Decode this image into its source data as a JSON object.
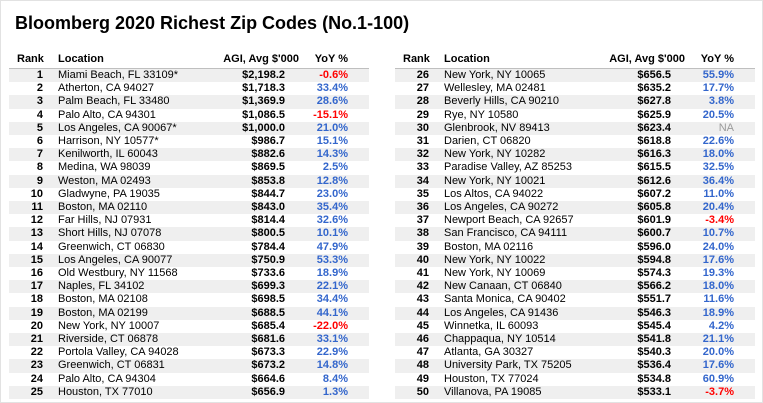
{
  "title": "Bloomberg 2020 Richest Zip Codes (No.1-100)",
  "colors": {
    "positive_yoy": "#3366CC",
    "negative_yoy": "#FF0000",
    "na_value": "#9B9B9B",
    "row_stripe": "#EFEFEF",
    "header_rule": "#BFBFBF"
  },
  "na_label": "NA",
  "chart_data": {
    "type": "table",
    "title": "Bloomberg 2020 Richest Zip Codes (No.1-100)",
    "columns": [
      "Rank",
      "Location",
      "AGI, Avg $'000",
      "YoY %"
    ],
    "layout": "two side-by-side tables: ranks 1-25 left, ranks 26-50 right",
    "rows": [
      [
        1,
        "Miami Beach, FL 33109*",
        2198.2,
        -0.6
      ],
      [
        2,
        "Atherton, CA 94027",
        1718.3,
        33.4
      ],
      [
        3,
        "Palm Beach, FL 33480",
        1369.9,
        28.6
      ],
      [
        4,
        "Palo Alto, CA 94301",
        1086.5,
        -15.1
      ],
      [
        5,
        "Los Angeles, CA 90067*",
        1000.0,
        21.0
      ],
      [
        6,
        "Harrison, NY 10577*",
        986.7,
        15.1
      ],
      [
        7,
        "Kenilworth, IL 60043",
        882.6,
        14.3
      ],
      [
        8,
        "Medina, WA 98039",
        869.5,
        2.5
      ],
      [
        9,
        "Weston, MA 02493",
        853.8,
        12.8
      ],
      [
        10,
        "Gladwyne, PA 19035",
        844.7,
        23.0
      ],
      [
        11,
        "Boston, MA 02110",
        843.0,
        35.4
      ],
      [
        12,
        "Far Hills, NJ 07931",
        814.4,
        32.6
      ],
      [
        13,
        "Short Hills, NJ 07078",
        800.5,
        10.1
      ],
      [
        14,
        "Greenwich, CT 06830",
        784.4,
        47.9
      ],
      [
        15,
        "Los Angeles, CA 90077",
        750.9,
        53.3
      ],
      [
        16,
        "Old Westbury, NY 11568",
        733.6,
        18.9
      ],
      [
        17,
        "Naples, FL 34102",
        699.3,
        22.1
      ],
      [
        18,
        "Boston, MA 02108",
        698.5,
        34.4
      ],
      [
        19,
        "Boston, MA 02199",
        688.5,
        44.1
      ],
      [
        20,
        "New York, NY 10007",
        685.4,
        -22.0
      ],
      [
        21,
        "Riverside, CT 06878",
        681.6,
        33.1
      ],
      [
        22,
        "Portola Valley, CA 94028",
        673.3,
        22.9
      ],
      [
        23,
        "Greenwich, CT 06831",
        673.2,
        14.8
      ],
      [
        24,
        "Palo Alto, CA 94304",
        664.6,
        8.4
      ],
      [
        25,
        "Houston, TX 77010",
        656.9,
        1.3
      ],
      [
        26,
        "New York, NY 10065",
        656.5,
        55.9
      ],
      [
        27,
        "Wellesley, MA 02481",
        635.2,
        17.7
      ],
      [
        28,
        "Beverly Hills, CA 90210",
        627.8,
        3.8
      ],
      [
        29,
        "Rye, NY 10580",
        625.9,
        20.5
      ],
      [
        30,
        "Glenbrook, NV 89413",
        623.4,
        null
      ],
      [
        31,
        "Darien, CT 06820",
        618.8,
        22.6
      ],
      [
        32,
        "New York, NY 10282",
        616.3,
        18.0
      ],
      [
        33,
        "Paradise Valley, AZ 85253",
        615.5,
        32.5
      ],
      [
        34,
        "New York, NY 10021",
        612.6,
        36.4
      ],
      [
        35,
        "Los Altos, CA 94022",
        607.2,
        11.0
      ],
      [
        36,
        "Los Angeles, CA 90272",
        605.8,
        20.4
      ],
      [
        37,
        "Newport Beach, CA 92657",
        601.9,
        -3.4
      ],
      [
        38,
        "San Francisco, CA 94111",
        600.7,
        10.7
      ],
      [
        39,
        "Boston, MA 02116",
        596.0,
        24.0
      ],
      [
        40,
        "New York, NY 10022",
        594.8,
        17.6
      ],
      [
        41,
        "New York, NY 10069",
        574.3,
        19.3
      ],
      [
        42,
        "New Canaan, CT 06840",
        566.2,
        18.0
      ],
      [
        43,
        "Santa Monica, CA 90402",
        551.7,
        11.6
      ],
      [
        44,
        "Los Angeles, CA 91436",
        546.3,
        18.9
      ],
      [
        45,
        "Winnetka, IL 60093",
        545.4,
        4.2
      ],
      [
        46,
        "Chappaqua, NY 10514",
        541.8,
        21.1
      ],
      [
        47,
        "Atlanta, GA 30327",
        540.3,
        20.0
      ],
      [
        48,
        "University Park, TX 75205",
        536.4,
        17.6
      ],
      [
        49,
        "Houston, TX 77024",
        534.8,
        60.9
      ],
      [
        50,
        "Villanova, PA 19085",
        533.1,
        -3.7
      ]
    ]
  }
}
